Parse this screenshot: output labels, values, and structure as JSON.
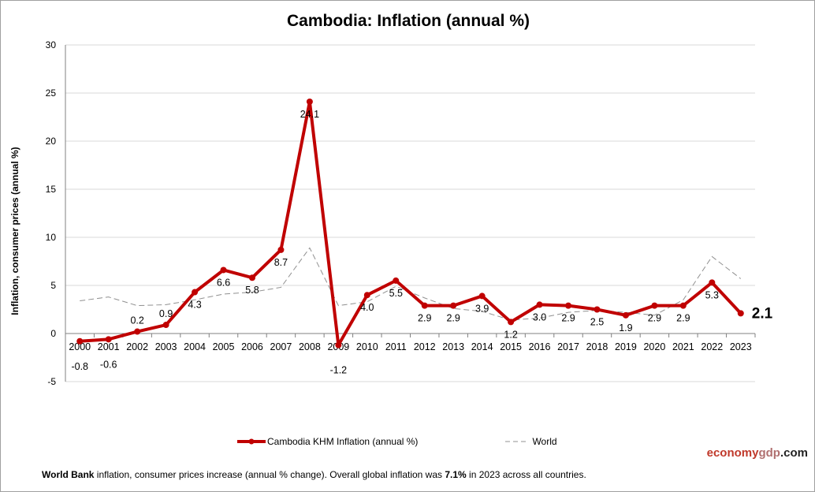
{
  "chart_data": {
    "type": "line",
    "title": "Cambodia: Inflation (annual %)",
    "ylabel": "Inflation, consumer prices (annual %)",
    "xlabel": "",
    "ylim": [
      -5,
      30
    ],
    "yticks": [
      -5,
      0,
      5,
      10,
      15,
      20,
      25,
      30
    ],
    "grid": true,
    "legend_position": "bottom",
    "categories": [
      "2000",
      "2001",
      "2002",
      "2003",
      "2004",
      "2005",
      "2006",
      "2007",
      "2008",
      "2009",
      "2010",
      "2011",
      "2012",
      "2013",
      "2014",
      "2015",
      "2016",
      "2017",
      "2018",
      "2019",
      "2020",
      "2021",
      "2022",
      "2023"
    ],
    "series": [
      {
        "name": "Cambodia KHM Inflation (annual %)",
        "color": "#c00000",
        "values": [
          -0.8,
          -0.6,
          0.2,
          0.9,
          4.3,
          6.6,
          5.8,
          8.7,
          24.1,
          -1.2,
          4.0,
          5.5,
          2.9,
          2.9,
          3.9,
          1.2,
          3.0,
          2.9,
          2.5,
          1.9,
          2.9,
          2.9,
          5.3,
          2.1
        ],
        "labels": [
          "-0.8",
          "-0.6",
          "0.2",
          "0.9",
          "4.3",
          "6.6",
          "5.8",
          "8.7",
          "24.1",
          "-1.2",
          "4.0",
          "5.5",
          "2.9",
          "2.9",
          "3.9",
          "1.2",
          "3.0",
          "2.9",
          "2.5",
          "1.9",
          "2.9",
          "2.9",
          "5.3",
          "2.1"
        ]
      },
      {
        "name": "World",
        "color": "#909090",
        "values": [
          3.4,
          3.8,
          2.9,
          3.0,
          3.5,
          4.1,
          4.3,
          4.8,
          8.9,
          2.9,
          3.3,
          4.9,
          3.7,
          2.6,
          2.3,
          1.4,
          1.6,
          2.2,
          2.4,
          2.2,
          1.9,
          3.5,
          8.0,
          5.7
        ]
      }
    ]
  },
  "brand": {
    "part1": "economy",
    "part2": "gdp",
    "part3": ".com"
  },
  "note": {
    "bold1": "World Bank",
    "text1": " inflation, consumer prices increase (annual  % change).   Overall  global  inflation was ",
    "bold2": "7.1%",
    "text2": " in 2023 across all countries."
  }
}
